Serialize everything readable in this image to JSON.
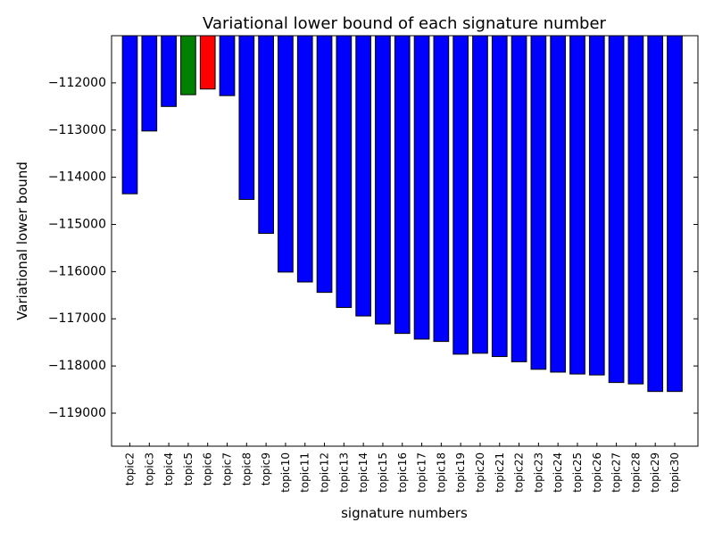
{
  "chart_data": {
    "type": "bar",
    "title": "Variational lower bound of each signature number",
    "xlabel": "signature numbers",
    "ylabel": "Variational lower bound",
    "ylim": [
      -119700,
      -111000
    ],
    "yticks": [
      -112000,
      -113000,
      -114000,
      -115000,
      -116000,
      -117000,
      -118000,
      -119000
    ],
    "ytick_labels": [
      "−112000",
      "−113000",
      "−114000",
      "−115000",
      "−116000",
      "−117000",
      "−118000",
      "−119000"
    ],
    "grid": false,
    "categories": [
      "topic2",
      "topic3",
      "topic4",
      "topic5",
      "topic6",
      "topic7",
      "topic8",
      "topic9",
      "topic10",
      "topic11",
      "topic12",
      "topic13",
      "topic14",
      "topic15",
      "topic16",
      "topic17",
      "topic18",
      "topic19",
      "topic20",
      "topic21",
      "topic22",
      "topic23",
      "topic24",
      "topic25",
      "topic26",
      "topic27",
      "topic28",
      "topic29",
      "topic30"
    ],
    "values": [
      -114350,
      -113020,
      -112500,
      -112250,
      -112130,
      -112270,
      -114470,
      -115190,
      -116010,
      -116220,
      -116440,
      -116760,
      -116940,
      -117110,
      -117310,
      -117430,
      -117480,
      -117750,
      -117730,
      -117800,
      -117910,
      -118070,
      -118130,
      -118170,
      -118190,
      -118350,
      -118380,
      -118540,
      -118540
    ],
    "colors": [
      "#0000ff",
      "#0000ff",
      "#0000ff",
      "#008000",
      "#ff0000",
      "#0000ff",
      "#0000ff",
      "#0000ff",
      "#0000ff",
      "#0000ff",
      "#0000ff",
      "#0000ff",
      "#0000ff",
      "#0000ff",
      "#0000ff",
      "#0000ff",
      "#0000ff",
      "#0000ff",
      "#0000ff",
      "#0000ff",
      "#0000ff",
      "#0000ff",
      "#0000ff",
      "#0000ff",
      "#0000ff",
      "#0000ff",
      "#0000ff",
      "#0000ff",
      "#0000ff"
    ]
  }
}
